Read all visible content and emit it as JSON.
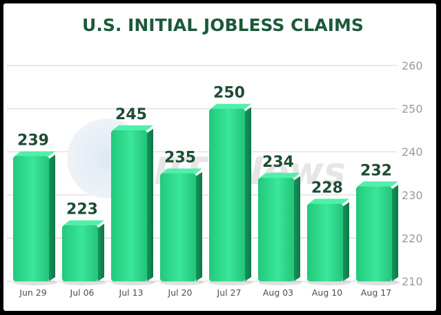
{
  "chart_data": {
    "type": "bar",
    "title": "U.S. INITIAL JOBLESS CLAIMS",
    "categories": [
      "Jun 29",
      "Jul 06",
      "Jul 13",
      "Jul 20",
      "Jul 27",
      "Aug 03",
      "Aug 10",
      "Aug 17"
    ],
    "values": [
      239,
      223,
      245,
      235,
      250,
      234,
      228,
      232
    ],
    "xlabel": "",
    "ylabel": "",
    "ylim": [
      210,
      260
    ],
    "yticks": [
      210,
      220,
      230,
      240,
      250,
      260
    ],
    "y_axis_side": "right",
    "grid": true,
    "bar_color": "#2ee08f",
    "label_color": "#1d4d33",
    "title_color": "#1d5a3a",
    "watermark": "RTTNews"
  }
}
